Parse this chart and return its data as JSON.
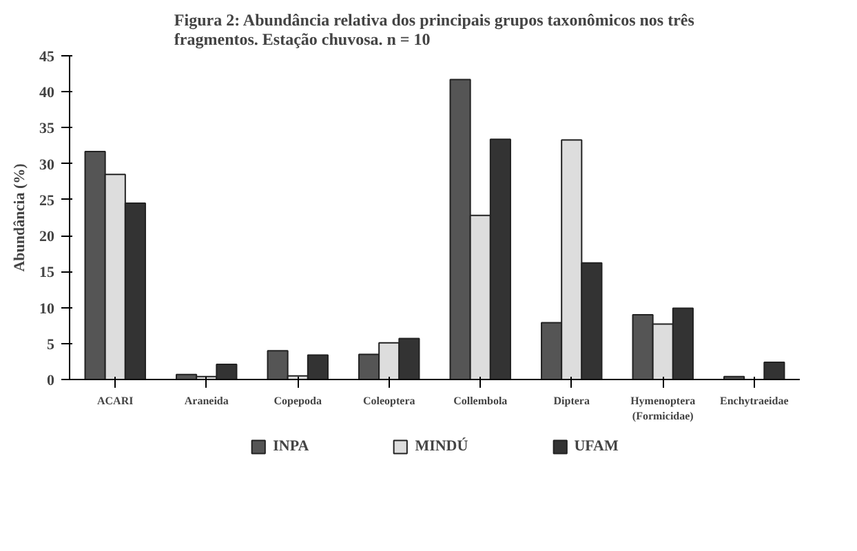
{
  "chart_data": {
    "type": "bar",
    "title": "Figura 2: Abundância relativa dos principais grupos taxonômicos nos três\nfragmentos. Estação chuvosa. n = 10",
    "ylabel": "Abundância (%)",
    "categories": [
      "ACARI",
      "Araneida",
      "Copepoda",
      "Coleoptera",
      "Collembola",
      "Diptera",
      "Hymenoptera\n(Formicidae)",
      "Enchytraeidae"
    ],
    "series": [
      {
        "name": "INPA",
        "color": "#555555",
        "values": [
          31.7,
          0.7,
          4.0,
          3.5,
          41.7,
          7.9,
          9.0,
          0.4
        ]
      },
      {
        "name": "MINDÚ",
        "color": "#dddddd",
        "values": [
          28.5,
          0.4,
          0.5,
          5.1,
          22.8,
          33.3,
          7.7,
          null
        ]
      },
      {
        "name": "UFAM",
        "color": "#333333",
        "values": [
          24.5,
          2.1,
          3.4,
          5.7,
          33.4,
          16.2,
          9.9,
          2.4
        ]
      }
    ],
    "ylim": [
      0,
      45
    ],
    "yticks": [
      0,
      5,
      10,
      15,
      20,
      25,
      30,
      35,
      40,
      45
    ],
    "grid": false,
    "legend": "bottom"
  }
}
